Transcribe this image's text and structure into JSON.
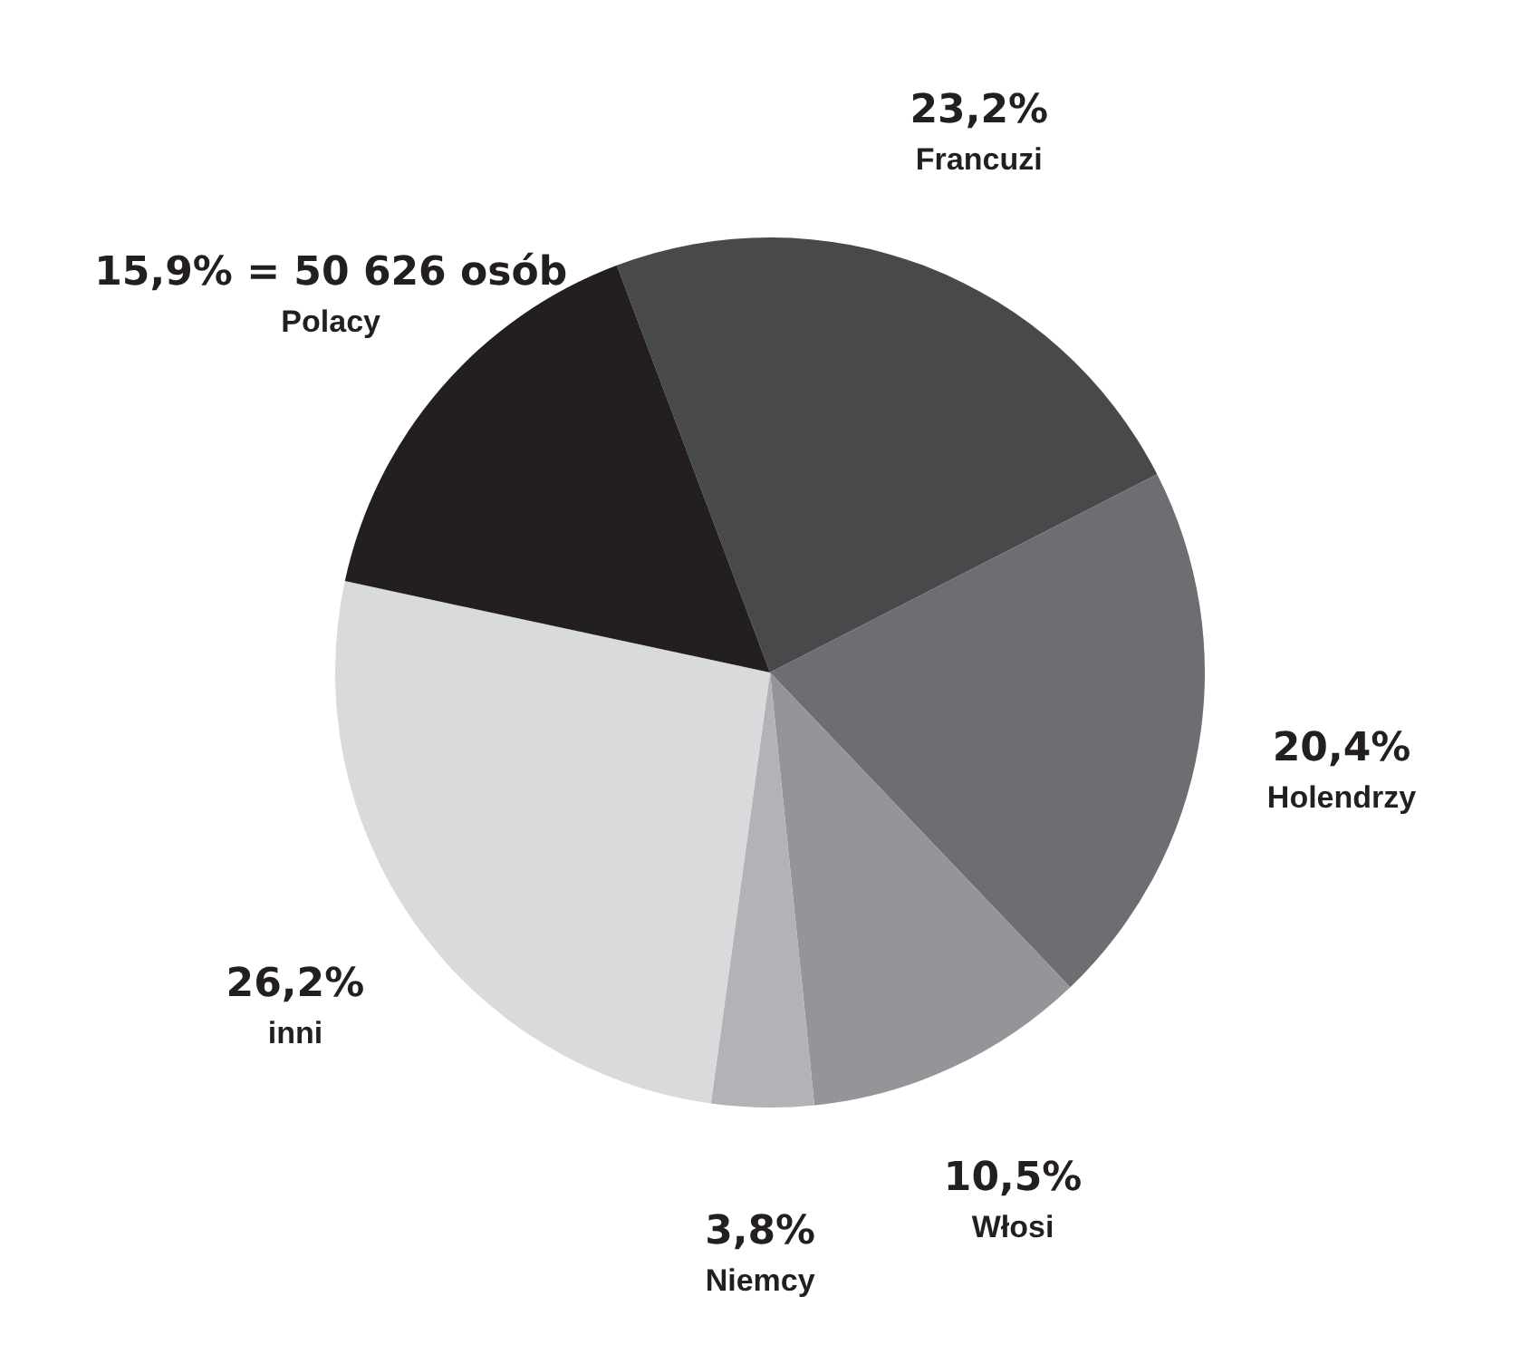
{
  "chart_data": {
    "type": "pie",
    "categories": [
      "Francuzi",
      "Holendrzy",
      "Włosi",
      "Niemcy",
      "inni",
      "Polacy"
    ],
    "values": [
      23.2,
      20.4,
      10.5,
      3.8,
      26.2,
      15.9
    ],
    "colors": [
      "#48494b",
      "#6d6e71",
      "#939598",
      "#b1b3b6",
      "#d9dadb",
      "#231f20"
    ],
    "value_labels": [
      "23,2%",
      "20,4%",
      "10,5%",
      "3,8%",
      "26,2%",
      "15,9% = 50 626 osób"
    ]
  }
}
